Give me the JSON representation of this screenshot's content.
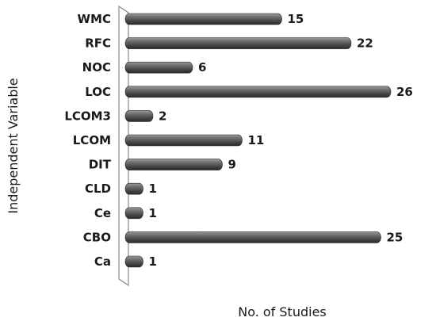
{
  "chart_data": {
    "type": "bar",
    "orientation": "horizontal",
    "style": "3d-cylinder",
    "categories": [
      "WMC",
      "RFC",
      "NOC",
      "LOC",
      "LCOM3",
      "LCOM",
      "DIT",
      "CLD",
      "Ce",
      "CBO",
      "Ca"
    ],
    "values": [
      15,
      22,
      6,
      26,
      2,
      11,
      9,
      1,
      1,
      25,
      1
    ],
    "xlabel": "No. of Studies",
    "ylabel": "Independent Variable",
    "xlim": [
      0,
      28
    ],
    "grid": false,
    "legend": "none",
    "bar_color": "#555555",
    "bar_highlight": "#8a8a8a",
    "bar_shadow": "#2c2c2c"
  }
}
